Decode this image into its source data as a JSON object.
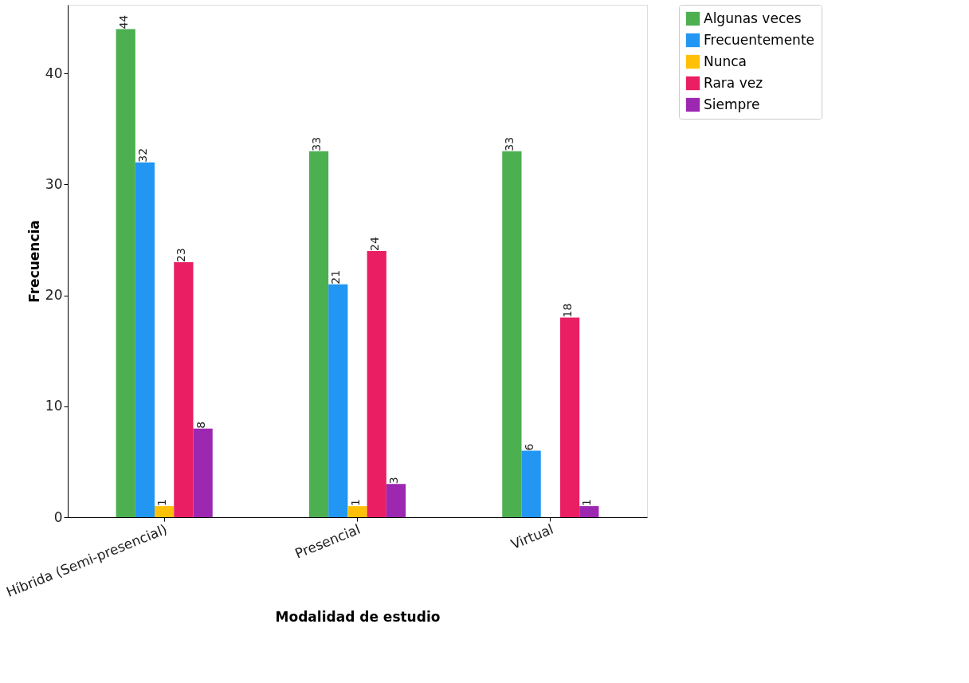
{
  "chart_data": {
    "type": "bar",
    "xlabel": "Modalidad de estudio",
    "ylabel": "Frecuencia",
    "categories": [
      "Híbrida (Semi-presencial)",
      "Presencial",
      "Virtual"
    ],
    "series": [
      {
        "name": "Algunas veces",
        "color": "#4caf50",
        "values": [
          44,
          33,
          33
        ]
      },
      {
        "name": "Frecuentemente",
        "color": "#2196f3",
        "values": [
          32,
          21,
          6
        ]
      },
      {
        "name": "Nunca",
        "color": "#ffc107",
        "values": [
          1,
          1,
          null
        ]
      },
      {
        "name": "Rara vez",
        "color": "#e91e63",
        "values": [
          23,
          24,
          18
        ]
      },
      {
        "name": "Siempre",
        "color": "#9c27b0",
        "values": [
          8,
          3,
          1
        ]
      }
    ],
    "ylim": [
      0,
      46.2
    ],
    "yticks": [
      0,
      10,
      20,
      30,
      40
    ],
    "data_labels": true,
    "legend": "right",
    "grid": false
  }
}
